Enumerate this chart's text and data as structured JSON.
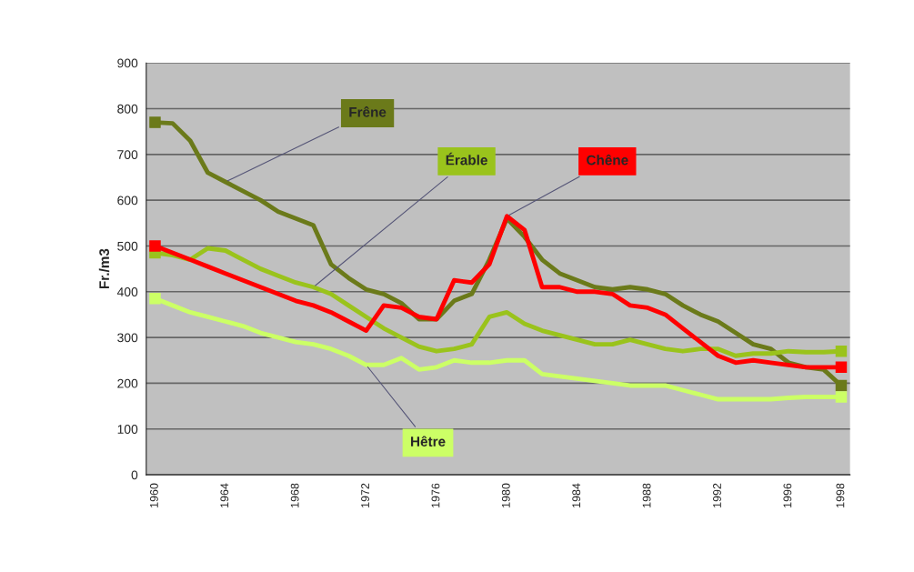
{
  "chart_data": {
    "type": "line",
    "ylabel": "Fr./m3",
    "categories": [
      "1960",
      null,
      null,
      null,
      "1964",
      null,
      null,
      null,
      "1968",
      null,
      null,
      null,
      "1972",
      null,
      null,
      null,
      "1976",
      null,
      null,
      null,
      "1980",
      null,
      null,
      null,
      "1984",
      null,
      null,
      null,
      "1988",
      null,
      null,
      null,
      "1992",
      null,
      null,
      null,
      "1996",
      null,
      null,
      "1998"
    ],
    "series": [
      {
        "name": "Frêne",
        "color": "#6b7a1a",
        "values": [
          770,
          768,
          730,
          660,
          640,
          620,
          600,
          575,
          560,
          545,
          460,
          430,
          405,
          395,
          375,
          340,
          340,
          380,
          395,
          470,
          560,
          520,
          470,
          440,
          425,
          410,
          405,
          410,
          405,
          395,
          370,
          350,
          335,
          310,
          285,
          275,
          245,
          235,
          230,
          195
        ]
      },
      {
        "name": "Érable",
        "color": "#9ac31c",
        "values": [
          485,
          480,
          470,
          495,
          490,
          470,
          450,
          435,
          420,
          410,
          395,
          370,
          345,
          320,
          300,
          280,
          270,
          275,
          285,
          345,
          355,
          330,
          315,
          305,
          295,
          285,
          285,
          295,
          285,
          275,
          270,
          275,
          275,
          260,
          265,
          265,
          270,
          268,
          268,
          270
        ]
      },
      {
        "name": "Chêne",
        "color": "#ff0000",
        "values": [
          500,
          485,
          470,
          455,
          440,
          425,
          410,
          395,
          380,
          370,
          355,
          335,
          315,
          370,
          365,
          345,
          340,
          425,
          420,
          460,
          565,
          535,
          410,
          410,
          400,
          400,
          395,
          370,
          365,
          350,
          320,
          290,
          260,
          245,
          250,
          245,
          240,
          235,
          235,
          235
        ]
      },
      {
        "name": "Hêtre",
        "color": "#ccff66",
        "values": [
          385,
          370,
          355,
          345,
          335,
          325,
          310,
          300,
          290,
          285,
          275,
          260,
          240,
          240,
          255,
          230,
          235,
          250,
          245,
          245,
          250,
          250,
          220,
          215,
          210,
          205,
          200,
          195,
          195,
          195,
          185,
          175,
          165,
          165,
          165,
          165,
          168,
          170,
          170,
          170
        ]
      }
    ],
    "ylim": [
      0,
      900
    ],
    "yticks": [
      0,
      100,
      200,
      300,
      400,
      500,
      600,
      700,
      800,
      900
    ],
    "grid": "y",
    "line_style": "solid",
    "legend": false
  }
}
